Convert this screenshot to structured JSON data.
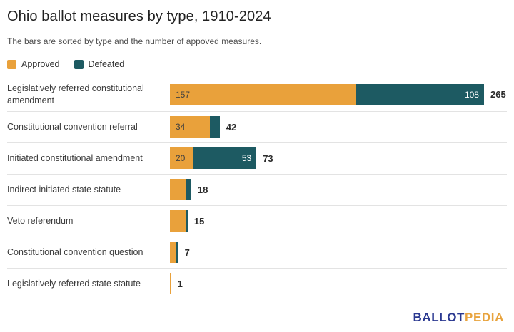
{
  "header": {
    "title": "Ohio ballot measures by type, 1910-2024",
    "subtitle": "The bars are sorted by type and the number of appoved measures."
  },
  "colors": {
    "approved": "#e9a13b",
    "defeated": "#1d5a62",
    "divider": "#e3e3e3",
    "logo_blue": "#2a3890",
    "logo_gold": "#e8a33d"
  },
  "legend": [
    {
      "label": "Approved",
      "color": "#e9a13b"
    },
    {
      "label": "Defeated",
      "color": "#1d5a62"
    }
  ],
  "chart_data": {
    "type": "bar",
    "orientation": "horizontal",
    "stacked": true,
    "title": "Ohio ballot measures by type, 1910-2024",
    "xlabel": "",
    "ylabel": "",
    "xlim": [
      0,
      265
    ],
    "grid": false,
    "legend_position": "top",
    "categories": [
      "Legislatively referred constitutional amendment",
      "Constitutional convention referral",
      "Initiated constitutional amendment",
      "Indirect initiated state statute",
      "Veto referendum",
      "Constitutional convention question",
      "Legislatively referred state statute"
    ],
    "series": [
      {
        "name": "Approved",
        "color": "#e9a13b",
        "values": [
          157,
          34,
          20,
          14,
          13,
          5,
          1
        ]
      },
      {
        "name": "Defeated",
        "color": "#1d5a62",
        "values": [
          108,
          8,
          53,
          4,
          2,
          2,
          0
        ]
      }
    ],
    "totals": [
      265,
      42,
      73,
      18,
      15,
      7,
      1
    ],
    "approved_value_labels": [
      "157",
      "34",
      "20",
      "",
      "",
      "",
      ""
    ],
    "defeated_value_labels": [
      "108",
      "",
      "53",
      "",
      "",
      "",
      ""
    ],
    "total_labels": [
      "265",
      "42",
      "73",
      "18",
      "15",
      "7",
      "1"
    ]
  },
  "footer": {
    "logo_ballot": "BALLOT",
    "logo_pedia": "PEDIA"
  }
}
